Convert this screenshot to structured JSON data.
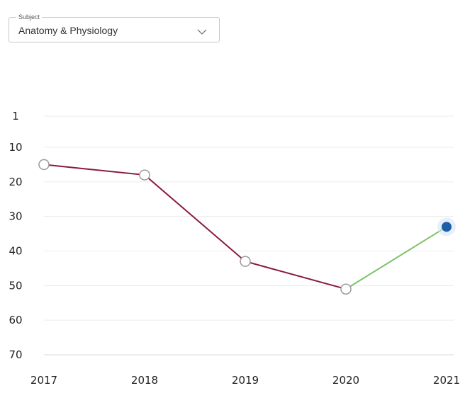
{
  "subject_select": {
    "label": "Subject",
    "value": "Anatomy & Physiology",
    "icon": "chevron-down-icon"
  },
  "chart_data": {
    "type": "line",
    "title": "",
    "xlabel": "",
    "ylabel": "",
    "x": [
      2017,
      2018,
      2019,
      2020,
      2021
    ],
    "y_ticks": [
      1,
      10,
      20,
      30,
      40,
      50,
      60,
      70
    ],
    "ylim": [
      1,
      70
    ],
    "y_inverted": true,
    "grid": true,
    "series": [
      {
        "values": [
          15,
          18,
          43,
          51,
          null
        ],
        "color": "#8b1a3a",
        "marker": "hollow-circle"
      },
      {
        "values": [
          null,
          null,
          null,
          51,
          33
        ],
        "color": "#7cc26a",
        "marker": "none"
      }
    ],
    "highlight_point": {
      "x": 2021,
      "y": 33,
      "color": "#1a5fa8"
    }
  }
}
